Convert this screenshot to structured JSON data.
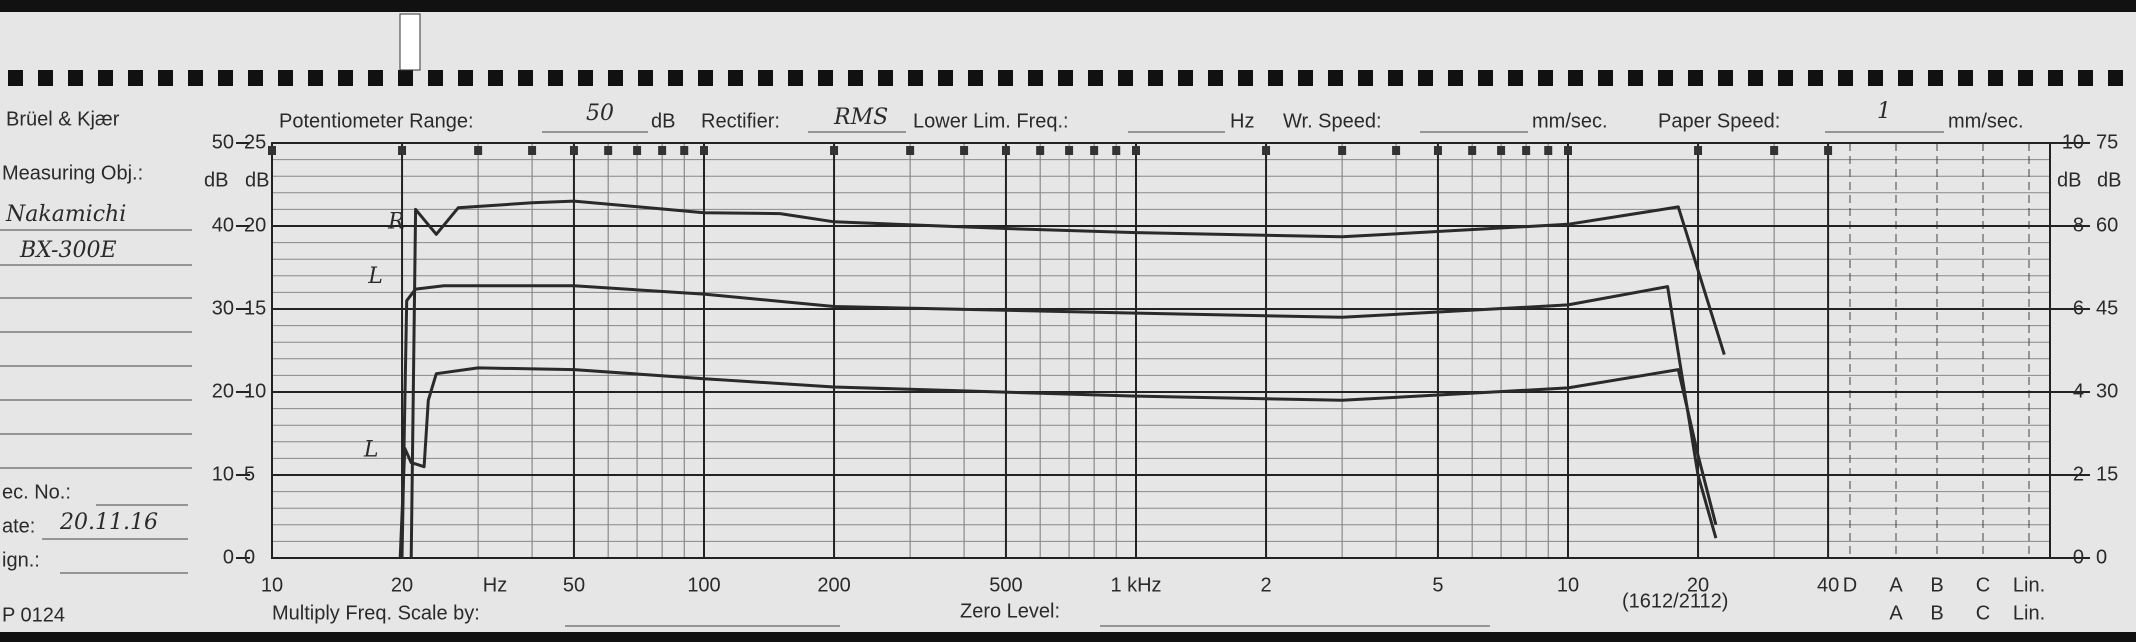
{
  "form": {
    "brand": "Brüel & Kjær",
    "pot_label": "Potentiometer Range:",
    "pot_value": "50",
    "pot_unit": "dB",
    "rect_label": "Rectifier:",
    "rect_value": "RMS",
    "llf_label": "Lower Lim. Freq.:",
    "llf_unit": "Hz",
    "wr_label": "Wr. Speed:",
    "wr_unit": "mm/sec.",
    "paper_label": "Paper Speed:",
    "paper_value": "1",
    "paper_unit": "mm/sec.",
    "obj_label": "Measuring Obj.:",
    "obj_line1": "Nakamichi",
    "obj_line2": "BX-300E",
    "rec_label": "ec. No.:",
    "date_label": "ate:",
    "date_value": "20.11.16",
    "sign_label": "ign.:",
    "form_no": "P 0124",
    "multiply_label": "Multiply Freq. Scale by:",
    "zero_label": "Zero Level:",
    "code": "(1612/2112)"
  },
  "chart_data": {
    "type": "line",
    "log_x": true,
    "grid": true,
    "x_unit": "Hz",
    "y_unit": "dB",
    "xlim": [
      10,
      40000
    ],
    "xticks": [
      10,
      20,
      50,
      100,
      200,
      500,
      {
        "value": 1000,
        "label": "1 kHz"
      },
      {
        "value": 2000,
        "label": "2"
      },
      {
        "value": 5000,
        "label": "5"
      },
      {
        "value": 10000,
        "label": "10"
      },
      {
        "value": 20000,
        "label": "20"
      },
      {
        "value": 40000,
        "label": "40"
      }
    ],
    "weightings": [
      "D",
      "A",
      "B",
      "C",
      "Lin."
    ],
    "ylim": [
      0,
      50
    ],
    "yticks": [
      0,
      10,
      20,
      30,
      40,
      50
    ],
    "yalt": {
      "lim": [
        0,
        25
      ],
      "ticks": [
        0,
        5,
        10,
        15,
        20,
        25
      ]
    },
    "y2lim": [
      0,
      75
    ],
    "y2ticks": [
      0,
      15,
      30,
      45,
      60,
      75
    ],
    "y2alt": {
      "lim": [
        0,
        10
      ],
      "ticks": [
        0,
        2,
        4,
        6,
        8,
        10
      ]
    },
    "series": [
      {
        "name": "R",
        "color": "#2a2a2a",
        "x": [
          21,
          21.5,
          24,
          27,
          40,
          50,
          100,
          150,
          200,
          500,
          1000,
          3000,
          10000,
          18000,
          23000
        ],
        "values": [
          0,
          42,
          39,
          42.2,
          42.8,
          43,
          41.6,
          41.5,
          40.5,
          39.7,
          39.2,
          38.7,
          40.2,
          42.3,
          24.5
        ]
      },
      {
        "name": "L",
        "color": "#2a2a2a",
        "x": [
          20,
          20.5,
          21.5,
          25,
          50,
          100,
          200,
          1000,
          3000,
          10000,
          17000,
          20000,
          22000
        ],
        "values": [
          0,
          31,
          32.4,
          32.8,
          32.8,
          31.8,
          30.3,
          29.5,
          29,
          30.5,
          32.7,
          10,
          2.4
        ]
      },
      {
        "name": "L",
        "color": "#2a2a2a",
        "x": [
          19.8,
          20.3,
          21,
          22.5,
          23,
          24,
          30,
          50,
          100,
          200,
          1000,
          3000,
          10000,
          18000,
          20000,
          22000
        ],
        "values": [
          0,
          13.2,
          11.5,
          11,
          19,
          22.2,
          22.9,
          22.7,
          21.6,
          20.6,
          19.5,
          19,
          20.5,
          22.7,
          12.4,
          4
        ]
      }
    ]
  }
}
